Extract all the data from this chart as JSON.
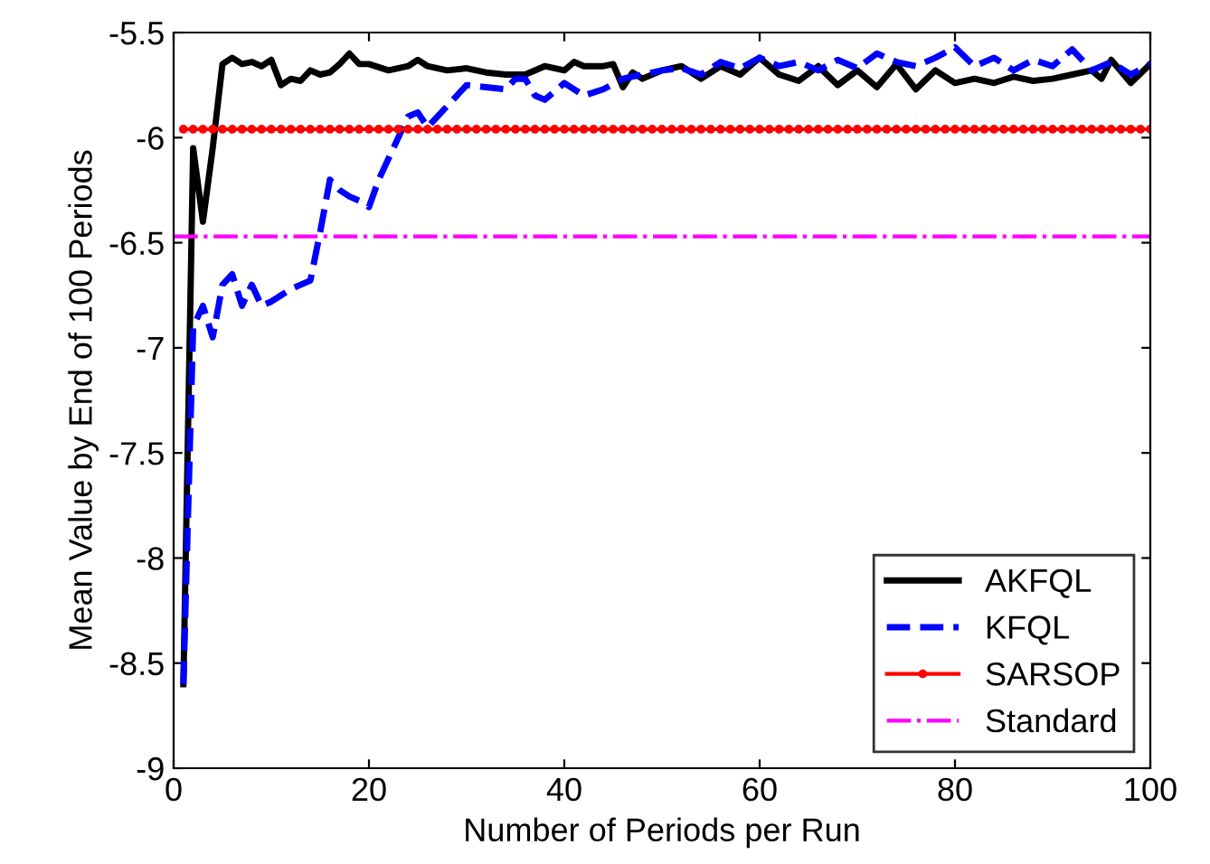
{
  "chart_data": {
    "type": "line",
    "xlabel": "Number of Periods per Run",
    "ylabel": "Mean Value by End of 100 Periods",
    "xlim": [
      0,
      100
    ],
    "xticks": [
      0,
      20,
      40,
      60,
      80,
      100
    ],
    "ylim": [
      -9,
      -5.5
    ],
    "yticks": [
      -9,
      -8.5,
      -8,
      -7.5,
      -7,
      -6.5,
      -6,
      -5.5
    ],
    "legend": "bottom right",
    "grid": false,
    "series": [
      {
        "name": "AKFQL",
        "color": "#000000",
        "line_style": "solid",
        "x": [
          1,
          2,
          3,
          4,
          5,
          6,
          7,
          8,
          9,
          10,
          11,
          12,
          13,
          14,
          15,
          16,
          17,
          18,
          19,
          20,
          22,
          24,
          25,
          26,
          28,
          30,
          32,
          34,
          36,
          38,
          40,
          41,
          42,
          44,
          45,
          46,
          47,
          48,
          50,
          52,
          54,
          56,
          58,
          60,
          62,
          64,
          66,
          68,
          70,
          72,
          74,
          76,
          78,
          80,
          82,
          84,
          86,
          88,
          90,
          92,
          94,
          95,
          96,
          98,
          100
        ],
        "values": [
          -8.6,
          -6.05,
          -6.4,
          -6.05,
          -5.65,
          -5.62,
          -5.65,
          -5.64,
          -5.66,
          -5.63,
          -5.75,
          -5.72,
          -5.73,
          -5.68,
          -5.7,
          -5.69,
          -5.65,
          -5.6,
          -5.65,
          -5.65,
          -5.68,
          -5.66,
          -5.63,
          -5.66,
          -5.68,
          -5.67,
          -5.69,
          -5.7,
          -5.7,
          -5.66,
          -5.68,
          -5.64,
          -5.66,
          -5.66,
          -5.65,
          -5.76,
          -5.69,
          -5.72,
          -5.68,
          -5.66,
          -5.72,
          -5.66,
          -5.7,
          -5.62,
          -5.7,
          -5.73,
          -5.66,
          -5.75,
          -5.68,
          -5.76,
          -5.65,
          -5.77,
          -5.68,
          -5.74,
          -5.72,
          -5.74,
          -5.71,
          -5.73,
          -5.72,
          -5.7,
          -5.68,
          -5.72,
          -5.63,
          -5.74,
          -5.65
        ]
      },
      {
        "name": "KFQL",
        "color": "#0000ff",
        "line_style": "dashed",
        "x": [
          1,
          2,
          3,
          4,
          5,
          6,
          7,
          8,
          9,
          10,
          11,
          12,
          13,
          14,
          15,
          16,
          17,
          18,
          19,
          20,
          21,
          22,
          23,
          24,
          25,
          26,
          27,
          28,
          29,
          30,
          32,
          34,
          35,
          36,
          37,
          38,
          40,
          42,
          44,
          46,
          48,
          50,
          52,
          54,
          56,
          58,
          60,
          62,
          64,
          66,
          68,
          70,
          72,
          74,
          76,
          78,
          80,
          82,
          84,
          86,
          88,
          90,
          92,
          94,
          96,
          98,
          100
        ],
        "values": [
          -8.6,
          -6.9,
          -6.8,
          -6.95,
          -6.7,
          -6.65,
          -6.8,
          -6.7,
          -6.8,
          -6.78,
          -6.75,
          -6.72,
          -6.7,
          -6.68,
          -6.45,
          -6.2,
          -6.25,
          -6.28,
          -6.3,
          -6.33,
          -6.2,
          -6.1,
          -6.0,
          -5.9,
          -5.88,
          -5.95,
          -5.9,
          -5.85,
          -5.8,
          -5.75,
          -5.76,
          -5.77,
          -5.72,
          -5.72,
          -5.8,
          -5.82,
          -5.74,
          -5.8,
          -5.77,
          -5.72,
          -5.7,
          -5.68,
          -5.67,
          -5.7,
          -5.64,
          -5.67,
          -5.62,
          -5.66,
          -5.64,
          -5.68,
          -5.63,
          -5.67,
          -5.6,
          -5.64,
          -5.66,
          -5.62,
          -5.57,
          -5.66,
          -5.62,
          -5.68,
          -5.63,
          -5.66,
          -5.58,
          -5.68,
          -5.64,
          -5.7,
          -5.65
        ]
      },
      {
        "name": "SARSOP",
        "color": "#ff0000",
        "line_style": "solid",
        "marker": "circle",
        "x": [
          1,
          2,
          3,
          4,
          5,
          6,
          7,
          8,
          9,
          10,
          11,
          12,
          13,
          14,
          15,
          16,
          17,
          18,
          19,
          20,
          21,
          22,
          23,
          24,
          25,
          26,
          27,
          28,
          29,
          30,
          31,
          32,
          33,
          34,
          35,
          36,
          37,
          38,
          39,
          40,
          41,
          42,
          43,
          44,
          45,
          46,
          47,
          48,
          49,
          50,
          51,
          52,
          53,
          54,
          55,
          56,
          57,
          58,
          59,
          60,
          61,
          62,
          63,
          64,
          65,
          66,
          67,
          68,
          69,
          70,
          71,
          72,
          73,
          74,
          75,
          76,
          77,
          78,
          79,
          80,
          81,
          82,
          83,
          84,
          85,
          86,
          87,
          88,
          89,
          90,
          91,
          92,
          93,
          94,
          95,
          96,
          97,
          98,
          99,
          100
        ],
        "values": [
          -5.96,
          -5.96,
          -5.96,
          -5.96,
          -5.96,
          -5.96,
          -5.96,
          -5.96,
          -5.96,
          -5.96,
          -5.96,
          -5.96,
          -5.96,
          -5.96,
          -5.96,
          -5.96,
          -5.96,
          -5.96,
          -5.96,
          -5.96,
          -5.96,
          -5.96,
          -5.96,
          -5.96,
          -5.96,
          -5.96,
          -5.96,
          -5.96,
          -5.96,
          -5.96,
          -5.96,
          -5.96,
          -5.96,
          -5.96,
          -5.96,
          -5.96,
          -5.96,
          -5.96,
          -5.96,
          -5.96,
          -5.96,
          -5.96,
          -5.96,
          -5.96,
          -5.96,
          -5.96,
          -5.96,
          -5.96,
          -5.96,
          -5.96,
          -5.96,
          -5.96,
          -5.96,
          -5.96,
          -5.96,
          -5.96,
          -5.96,
          -5.96,
          -5.96,
          -5.96,
          -5.96,
          -5.96,
          -5.96,
          -5.96,
          -5.96,
          -5.96,
          -5.96,
          -5.96,
          -5.96,
          -5.96,
          -5.96,
          -5.96,
          -5.96,
          -5.96,
          -5.96,
          -5.96,
          -5.96,
          -5.96,
          -5.96,
          -5.96,
          -5.96,
          -5.96,
          -5.96,
          -5.96,
          -5.96,
          -5.96,
          -5.96,
          -5.96,
          -5.96,
          -5.96,
          -5.96,
          -5.96,
          -5.96,
          -5.96,
          -5.96,
          -5.96,
          -5.96,
          -5.96,
          -5.96,
          -5.96
        ]
      },
      {
        "name": "Standard",
        "color": "#ff00ff",
        "line_style": "dashdot",
        "x": [
          0,
          100
        ],
        "values": [
          -6.47,
          -6.47
        ]
      }
    ]
  }
}
